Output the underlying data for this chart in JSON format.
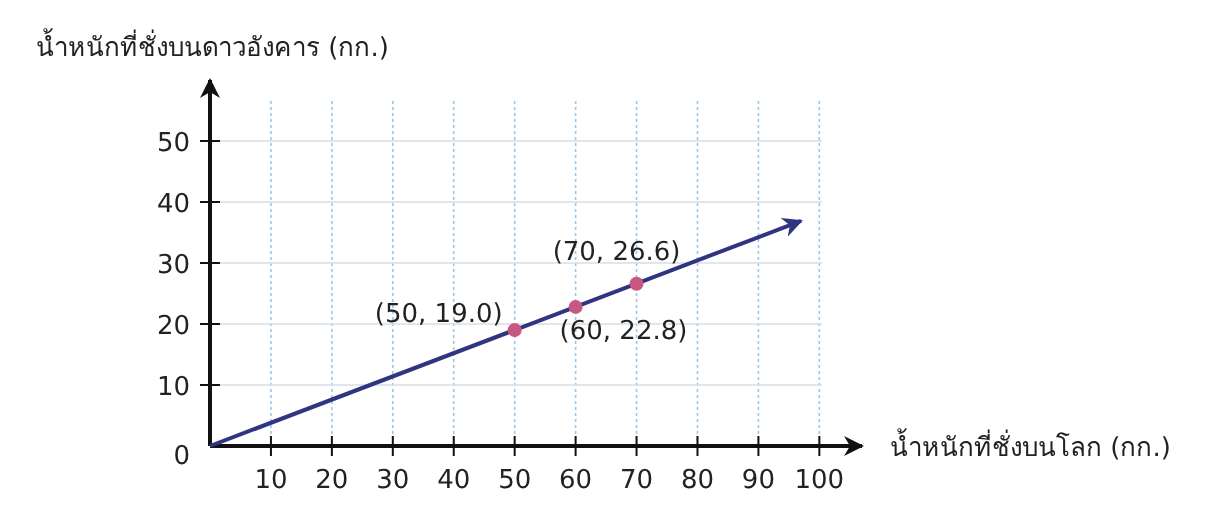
{
  "chart_data": {
    "type": "line",
    "xlabel": "น้ำหนักที่ชั่งบนโลก (กก.)",
    "ylabel": "น้ำหนักที่ชั่งบนดาวอังคาร (กก.)",
    "xlim": [
      0,
      107
    ],
    "ylim": [
      0,
      60
    ],
    "xticks": [
      10,
      20,
      30,
      40,
      50,
      60,
      70,
      80,
      90,
      100
    ],
    "yticks": [
      0,
      10,
      20,
      30,
      40,
      50
    ],
    "grid": true,
    "line_style": "solid",
    "series": [
      {
        "color": "#2f3580",
        "x": [
          0,
          97
        ],
        "values": [
          0,
          36.9
        ],
        "marker": "none"
      },
      {
        "type": "scatter",
        "color": "#c8587e",
        "x": [
          50,
          60,
          70
        ],
        "values": [
          19.0,
          22.8,
          26.6
        ],
        "marker": "circle"
      }
    ],
    "annotations": [
      {
        "text": "(50, 19.0)",
        "x": 50,
        "y": 19.0
      },
      {
        "text": "(60, 22.8)",
        "x": 60,
        "y": 22.8
      },
      {
        "text": "(70, 26.6)",
        "x": 70,
        "y": 26.6
      }
    ]
  }
}
